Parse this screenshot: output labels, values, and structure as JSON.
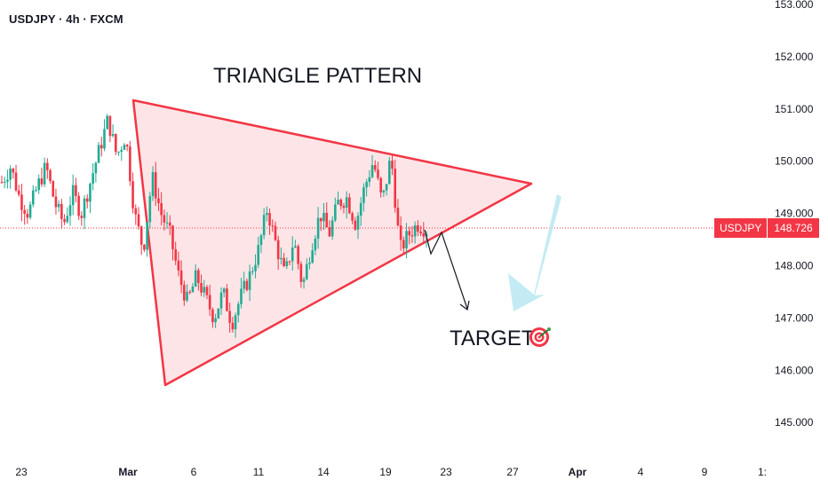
{
  "header": {
    "title": "USDJPY · 4h · FXCM"
  },
  "price_badge": {
    "symbol": "USDJPY",
    "value": "148.726"
  },
  "annotations": {
    "pattern_label": "TRIANGLE PATTERN",
    "target_label": "TARGET",
    "target_icon": "target-icon"
  },
  "colors": {
    "up": "#22ab94",
    "down": "#f23645",
    "triangle_stroke": "#f23645",
    "triangle_fill": "#fde0e3",
    "arrow_hint": "#bde9f2"
  },
  "chart_data": {
    "type": "candlestick",
    "title": "USDJPY · 4h · FXCM",
    "y_axis": {
      "position": "right",
      "ticks": [
        "145.000",
        "146.000",
        "147.000",
        "148.000",
        "149.000",
        "150.000",
        "151.000",
        "152.000",
        "153.000"
      ],
      "range": [
        144.5,
        153.0
      ]
    },
    "x_axis": {
      "ticks": [
        "23",
        "Mar",
        "6",
        "11",
        "14",
        "19",
        "23",
        "27",
        "Apr",
        "4",
        "9",
        "1:"
      ],
      "bold_ticks": [
        "Mar",
        "Apr"
      ]
    },
    "current_price": 148.726,
    "approx_price_path": [
      149.6,
      149.9,
      149.3,
      149.0,
      149.5,
      149.9,
      149.2,
      148.8,
      149.4,
      149.0,
      149.6,
      150.2,
      150.8,
      150.1,
      150.5,
      149.0,
      148.3,
      149.7,
      149.0,
      148.6,
      147.8,
      147.3,
      147.8,
      147.4,
      147.0,
      147.5,
      146.9,
      147.4,
      147.8,
      148.3,
      149.1,
      148.4,
      147.8,
      148.5,
      147.6,
      148.4,
      149.0,
      148.6,
      149.2,
      149.3,
      148.8,
      149.5,
      150.0,
      149.2,
      150.1,
      148.3,
      148.6,
      148.8,
      148.7
    ],
    "annotations": [
      "TRIANGLE PATTERN",
      "TARGET"
    ]
  }
}
